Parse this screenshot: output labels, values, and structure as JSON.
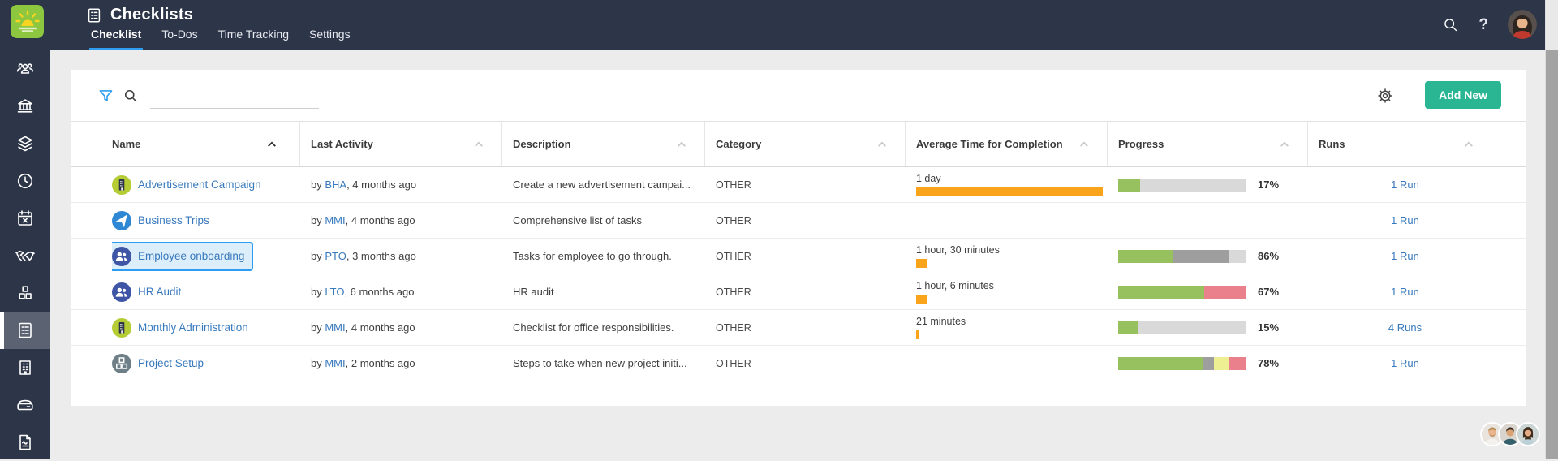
{
  "topbar": {
    "title": "Checklists",
    "tabs": [
      {
        "label": "Checklist",
        "active": true
      },
      {
        "label": "To-Dos",
        "active": false
      },
      {
        "label": "Time Tracking",
        "active": false
      },
      {
        "label": "Settings",
        "active": false
      }
    ],
    "icons": [
      "search-icon",
      "help-icon",
      "user-avatar"
    ],
    "help_glyph": "?"
  },
  "sidebar": {
    "items": [
      "users",
      "bank",
      "layers",
      "clock",
      "calendar-x",
      "handshake",
      "cubes",
      "checklists",
      "building",
      "drive",
      "report"
    ],
    "active": "checklists"
  },
  "toolbar": {
    "add_new": "Add New",
    "icons": [
      "filter-funnel-icon",
      "search-icon",
      "gear-icon"
    ],
    "search_value": ""
  },
  "colors": {
    "topbar_bg": "#2d3548",
    "accent_blue": "#2e9df0",
    "link_blue": "#3879bd",
    "add_new_green": "#2ab593",
    "time_bar_orange": "#f9a41b",
    "progress_green": "#97c05e",
    "progress_gray": "#9e9e9e",
    "progress_lightgray": "#d9d9d9",
    "progress_pink": "#e9808b",
    "progress_yellow": "#eeef92",
    "logo_green": "#8dc63f"
  },
  "table": {
    "columns": [
      {
        "label": "Name",
        "sorted": true
      },
      {
        "label": "Last Activity",
        "sorted": false
      },
      {
        "label": "Description",
        "sorted": false
      },
      {
        "label": "Category",
        "sorted": false
      },
      {
        "label": "Average Time for Completion",
        "sorted": false
      },
      {
        "label": "Progress",
        "sorted": false
      },
      {
        "label": "Runs",
        "sorted": false
      }
    ],
    "rows": [
      {
        "name": "Advertisement Campaign",
        "icon": "billboard",
        "icon_bg": "#b5cc35",
        "activity_prefix": "by ",
        "activity_user": "BHA",
        "activity_suffix": ", 4 months ago",
        "description": "Create a new advertisement campai...",
        "category": "OTHER",
        "avg_time": "1 day",
        "avg_time_fraction": 1.0,
        "progress_pct": "17%",
        "progress_segments": [
          {
            "color": "#97c05e",
            "pct": 17
          },
          {
            "color": "#d9d9d9",
            "pct": 83
          }
        ],
        "runs": "1 Run",
        "selected": false
      },
      {
        "name": "Business Trips",
        "icon": "plane",
        "icon_bg": "#2e88d4",
        "activity_prefix": "by ",
        "activity_user": "MMI",
        "activity_suffix": ", 4 months ago",
        "description": "Comprehensive list of tasks",
        "category": "OTHER",
        "avg_time": "",
        "avg_time_fraction": null,
        "progress_pct": "",
        "progress_segments": [],
        "runs": "1 Run",
        "selected": false
      },
      {
        "name": "Employee onboarding",
        "icon": "people",
        "icon_bg": "#3f55a5",
        "activity_prefix": "by ",
        "activity_user": "PTO",
        "activity_suffix": ", 3 months ago",
        "description": "Tasks for employee to go through.",
        "category": "OTHER",
        "avg_time": "1 hour, 30 minutes",
        "avg_time_fraction": 0.06,
        "progress_pct": "86%",
        "progress_segments": [
          {
            "color": "#97c05e",
            "pct": 43
          },
          {
            "color": "#9e9e9e",
            "pct": 43
          },
          {
            "color": "#d9d9d9",
            "pct": 14
          }
        ],
        "runs": "1 Run",
        "selected": true
      },
      {
        "name": "HR Audit",
        "icon": "people",
        "icon_bg": "#3f55a5",
        "activity_prefix": "by ",
        "activity_user": "LTO",
        "activity_suffix": ", 6 months ago",
        "description": "HR audit",
        "category": "OTHER",
        "avg_time": "1 hour, 6 minutes",
        "avg_time_fraction": 0.055,
        "progress_pct": "67%",
        "progress_segments": [
          {
            "color": "#97c05e",
            "pct": 67
          },
          {
            "color": "#e9808b",
            "pct": 33
          }
        ],
        "runs": "1 Run",
        "selected": false
      },
      {
        "name": "Monthly Administration",
        "icon": "billboard",
        "icon_bg": "#b5cc35",
        "activity_prefix": "by ",
        "activity_user": "MMI",
        "activity_suffix": ", 4 months ago",
        "description": "Checklist for office responsibilities.",
        "category": "OTHER",
        "avg_time": "21 minutes",
        "avg_time_fraction": 0.013,
        "progress_pct": "15%",
        "progress_segments": [
          {
            "color": "#97c05e",
            "pct": 15
          },
          {
            "color": "#d9d9d9",
            "pct": 85
          }
        ],
        "runs": "4 Runs",
        "selected": false
      },
      {
        "name": "Project Setup",
        "icon": "cubes",
        "icon_bg": "#6e7f88",
        "activity_prefix": "by ",
        "activity_user": "MMI",
        "activity_suffix": ", 2 months ago",
        "description": "Steps to take when new project initi...",
        "category": "OTHER",
        "avg_time": "",
        "avg_time_fraction": null,
        "progress_pct": "78%",
        "progress_segments": [
          {
            "color": "#97c05e",
            "pct": 66
          },
          {
            "color": "#9e9e9e",
            "pct": 9
          },
          {
            "color": "#eeef92",
            "pct": 12
          },
          {
            "color": "#e9808b",
            "pct": 13
          }
        ],
        "runs": "1 Run",
        "selected": false
      }
    ]
  },
  "footer": {
    "avatars": [
      "man-light-hair",
      "man-dark-hair",
      "woman-long-hair"
    ]
  }
}
